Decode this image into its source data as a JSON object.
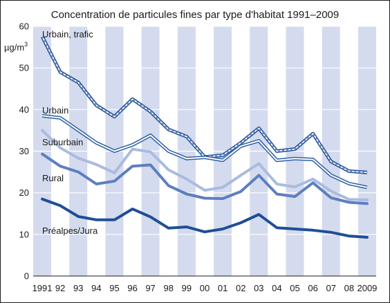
{
  "chart_data": {
    "type": "line",
    "title": "Concentration de particules fines par type d'habitat 1991–2009",
    "ylabel": "µg/m",
    "ylabel_superscript": "3",
    "xlabel": "",
    "ylim": [
      0,
      60
    ],
    "yticks": [
      "0",
      "10",
      "20",
      "30",
      "40",
      "50",
      "60"
    ],
    "categories": [
      "1991",
      "92",
      "93",
      "94",
      "95",
      "96",
      "97",
      "98",
      "99",
      "00",
      "01",
      "02",
      "03",
      "04",
      "05",
      "06",
      "07",
      "08",
      "2009"
    ],
    "grid": "horizontal",
    "band_colors": [
      "#d4dbee",
      "#ffffff"
    ],
    "series": [
      {
        "name": "Urbain, trafic",
        "style": "double-dashed",
        "color": "#1f4e96",
        "values": [
          57.5,
          49,
          46.5,
          41,
          38.3,
          42.5,
          39.5,
          35.2,
          33.5,
          28.6,
          29,
          32,
          35.5,
          30,
          30.5,
          34.2,
          27.5,
          25.2,
          24.9
        ]
      },
      {
        "name": "Urbain",
        "style": "double",
        "color": "#2d5fa5",
        "values": [
          38.5,
          38,
          35,
          32,
          30,
          31.5,
          33.8,
          30,
          28.2,
          28.5,
          27.8,
          31.2,
          32.5,
          27.8,
          28.2,
          28,
          24.2,
          22.2,
          21.3
        ]
      },
      {
        "name": "Suburbain",
        "style": "solid",
        "color": "#aabbe0",
        "values": [
          35,
          30.8,
          28.3,
          26.8,
          24.8,
          30.5,
          29.8,
          25.5,
          23.3,
          20.6,
          21.3,
          24.2,
          27,
          22.1,
          21.4,
          23.3,
          20.4,
          18.4,
          18.3
        ]
      },
      {
        "name": "Rural",
        "style": "solid",
        "color": "#5d7fc0",
        "values": [
          29.3,
          26.4,
          25,
          22.1,
          22.8,
          26.4,
          26.7,
          21.7,
          19.7,
          18.7,
          18.6,
          20.3,
          24.2,
          19.7,
          19.1,
          22.4,
          18.8,
          17.7,
          17.4
        ]
      },
      {
        "name": "Préalpes/Jura",
        "style": "solid",
        "color": "#1f4e96",
        "values": [
          18.5,
          16.9,
          14.3,
          13.5,
          13.5,
          16.1,
          14.2,
          11.5,
          11.8,
          10.6,
          11.3,
          12.8,
          14.8,
          11.6,
          11.3,
          11,
          10.5,
          9.6,
          9.3
        ]
      }
    ]
  }
}
